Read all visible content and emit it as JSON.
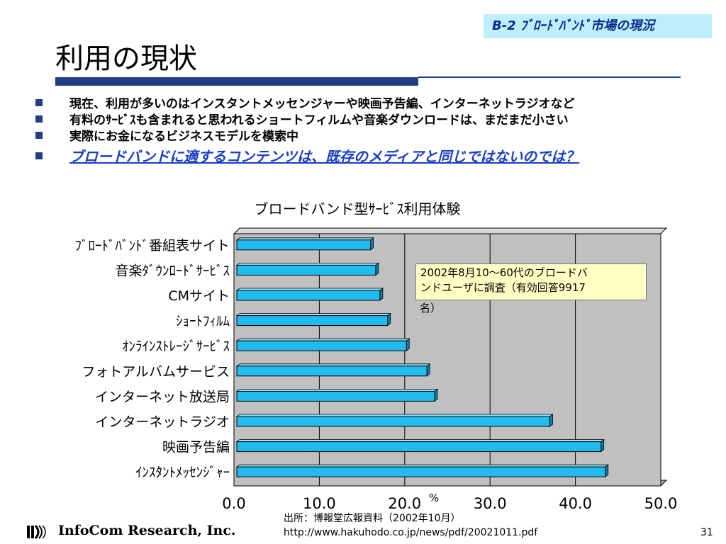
{
  "header": {
    "section_badge": "B-2 ﾌﾞﾛｰﾄﾞﾊﾞﾝﾄﾞ市場の現況",
    "title": "利用の現状"
  },
  "bullets": [
    "現在、利用が多いのはインスタントメッセンジャーや映画予告編、インターネットラジオなど",
    "有料のｻｰﾋﾞｽも含まれると思われるショートフィルムや音楽ダウンロードは、まだまだ小さい",
    "実際にお金になるビジネスモデルを模索中"
  ],
  "emphasis_bullet": "ブロードバンドに適するコンテンツは、既存のメディアと同じではないのでは？",
  "chart_data": {
    "type": "bar",
    "orientation": "horizontal",
    "title": "ブロードバンド型ｻｰﾋﾞｽ利用体験",
    "xlabel": "%",
    "xlim": [
      0,
      50
    ],
    "xticks": [
      "0.0",
      "10.0",
      "20.0",
      "30.0",
      "40.0",
      "50.0"
    ],
    "categories": [
      "ﾌﾞﾛｰﾄﾞﾊﾞﾝﾄﾞ番組表サイト",
      "音楽ﾀﾞｳﾝﾛｰﾄﾞｻｰﾋﾞｽ",
      "CMサイト",
      "ｼｮｰﾄﾌｨﾙﾑ",
      "ｵﾝﾗｲﾝｽﾄﾚｰｼﾞｻｰﾋﾞｽ",
      "フォトアルバムサービス",
      "インターネット放送局",
      "インターネットラジオ",
      "映画予告編",
      "ｲﾝｽﾀﾝﾄﾒｯｾﾝｼﾞｬｰ"
    ],
    "values": [
      16.0,
      16.6,
      17.1,
      18.0,
      20.2,
      22.6,
      23.5,
      37.0,
      43.0,
      43.5
    ],
    "grid": true,
    "bar_color": "#22bbee",
    "plot_bg": "#c0c0c0"
  },
  "annotation": {
    "line1": "2002年8月10～60代のブロードバ",
    "line2": "ンドユーザに調査（有効回答9917",
    "line3": "名）"
  },
  "source": {
    "line1": "出所：博報堂広報資料（2002年10月）",
    "line2": "http://www.hakuhodo.co.jp/news/pdf/20021011.pdf"
  },
  "footer": {
    "company": "InfoCom Research, Inc.",
    "page": "31"
  }
}
